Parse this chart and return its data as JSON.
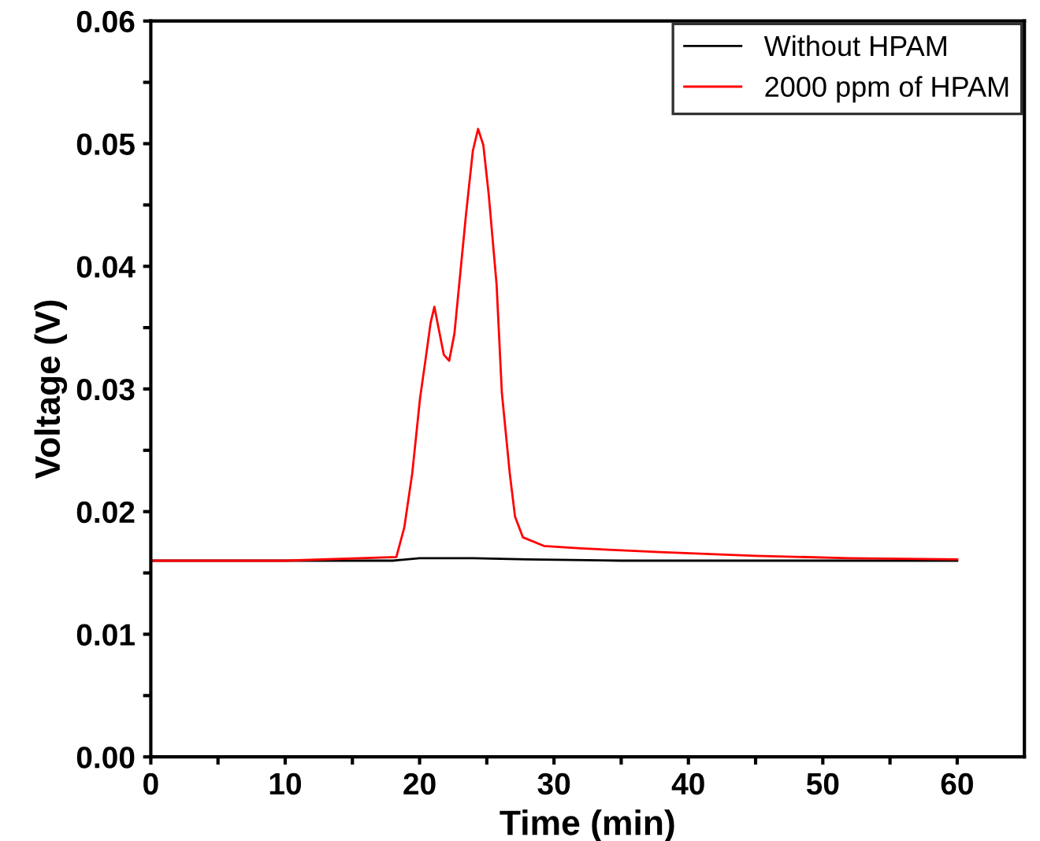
{
  "chart_data": {
    "type": "line",
    "xlabel": "Time (min)",
    "ylabel": "Voltage (V)",
    "xlim": [
      0,
      65
    ],
    "ylim": [
      0,
      0.06
    ],
    "xticks": [
      0,
      {
        "value": 5,
        "label": null
      },
      10,
      {
        "value": 15,
        "label": null
      },
      20,
      {
        "value": 25,
        "label": null
      },
      30,
      {
        "value": 35,
        "label": null
      },
      40,
      {
        "value": 45,
        "label": null
      },
      50,
      {
        "value": 55,
        "label": null
      },
      60
    ],
    "yticks": [
      {
        "value": 0,
        "label": "0.00"
      },
      {
        "value": 0.005,
        "label": null
      },
      {
        "value": 0.01,
        "label": "0.01"
      },
      {
        "value": 0.015,
        "label": null
      },
      {
        "value": 0.02,
        "label": "0.02"
      },
      {
        "value": 0.025,
        "label": null
      },
      {
        "value": 0.03,
        "label": "0.03"
      },
      {
        "value": 0.035,
        "label": null
      },
      {
        "value": 0.04,
        "label": "0.04"
      },
      {
        "value": 0.045,
        "label": null
      },
      {
        "value": 0.05,
        "label": "0.05"
      },
      {
        "value": 0.055,
        "label": null
      },
      {
        "value": 0.06,
        "label": "0.06"
      }
    ],
    "grid": false,
    "legend": "top right",
    "marker": "none",
    "line_style": "solid",
    "series": [
      {
        "name": "Without HPAM",
        "color": "#000000",
        "x": [
          0,
          18,
          20,
          24,
          28,
          35,
          45,
          60
        ],
        "values": [
          0.016,
          0.016,
          0.0162,
          0.0162,
          0.0161,
          0.016,
          0.016,
          0.016
        ]
      },
      {
        "name": "2000 ppm of HPAM",
        "color": "#ff0000",
        "x": [
          0,
          10,
          18.27,
          18.86,
          19.45,
          20.04,
          20.43,
          20.82,
          21.1,
          21.33,
          21.8,
          22.2,
          22.59,
          22.98,
          23.45,
          23.96,
          24.35,
          24.74,
          25.14,
          25.73,
          26.12,
          26.71,
          27.1,
          27.69,
          29.25,
          32.0,
          37.9,
          45,
          52,
          60
        ],
        "values": [
          0.016,
          0.016,
          0.0163,
          0.0187,
          0.0231,
          0.0293,
          0.0323,
          0.0354,
          0.0367,
          0.0354,
          0.0328,
          0.0323,
          0.0345,
          0.0389,
          0.0442,
          0.0494,
          0.0512,
          0.0499,
          0.0459,
          0.0385,
          0.0297,
          0.0231,
          0.0196,
          0.0179,
          0.0172,
          0.017,
          0.0167,
          0.0164,
          0.0162,
          0.0161
        ]
      }
    ]
  }
}
